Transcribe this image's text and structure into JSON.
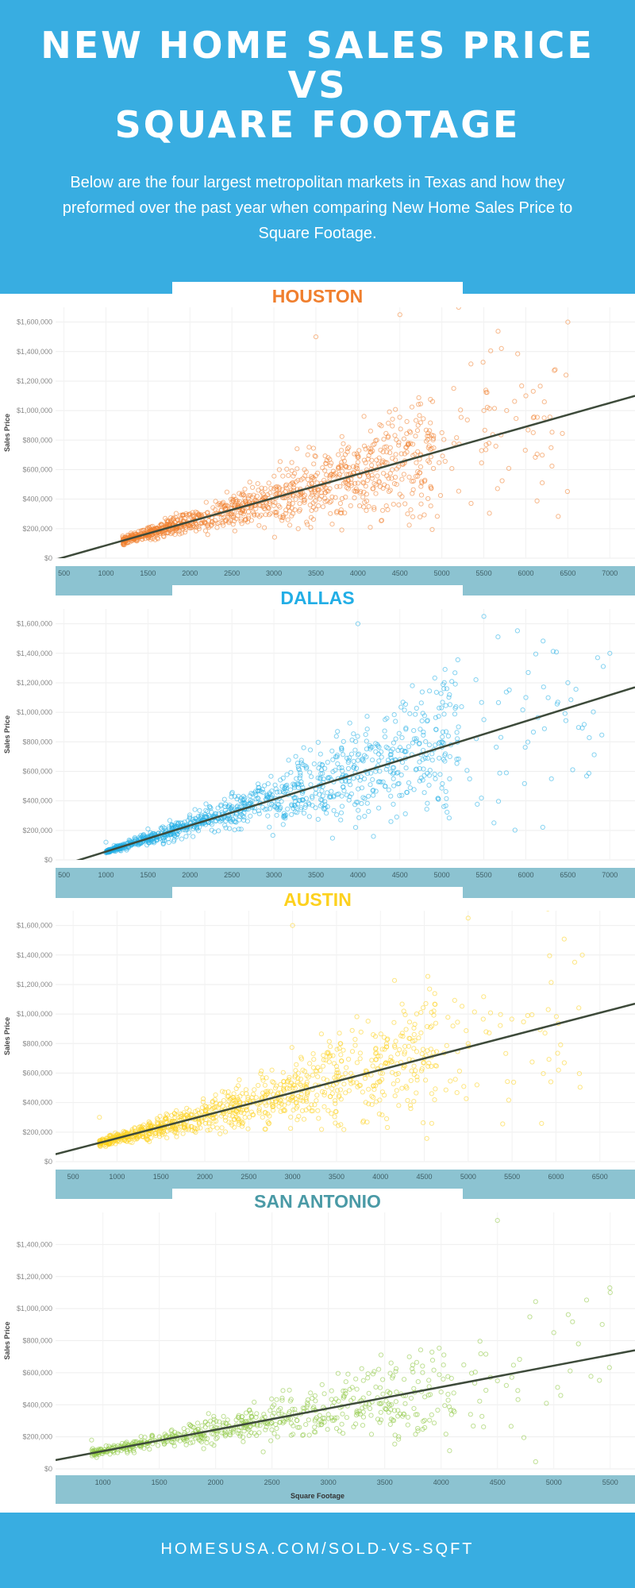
{
  "header": {
    "title_lines": [
      "NEW HOME SALES PRICE",
      "VS",
      "SQUARE FOOTAGE"
    ],
    "intro": "Below are the four largest metropolitan markets in Texas and how they preformed over the past year when comparing New Home Sales Price to Square Footage."
  },
  "footer": {
    "url": "HOMESUSA.COM/SOLD-VS-SQFT"
  },
  "colors": {
    "header_bg": "#38ade1",
    "axis_band": "#8cc3d1",
    "trend_line": "#3d4a3a",
    "houston": "#f07f2e",
    "dallas": "#22aee6",
    "austin": "#fdd11e",
    "san_antonio": "#8cc63f"
  },
  "chart_data": [
    {
      "type": "scatter",
      "title": "HOUSTON",
      "xlabel": "",
      "ylabel": "Sales Price",
      "xlim": [
        400,
        7300
      ],
      "ylim": [
        0,
        1700000
      ],
      "x_ticks": [
        500,
        1000,
        1500,
        2000,
        2500,
        3000,
        3500,
        4000,
        4500,
        5000,
        5500,
        6000,
        6500,
        7000
      ],
      "y_ticks": [
        0,
        200000,
        400000,
        600000,
        800000,
        1000000,
        1200000,
        1400000,
        1600000
      ],
      "y_tick_labels": [
        "$0",
        "$200,000",
        "$400,000",
        "$600,000",
        "$800,000",
        "$1,000,000",
        "$1,200,000",
        "$1,400,000",
        "$1,600,000"
      ],
      "trend": [
        [
          400,
          -10000
        ],
        [
          7300,
          1100000
        ]
      ],
      "grid": true,
      "color": "#f07f2e",
      "point_count": 1100,
      "points": [
        [
          1200,
          150000
        ],
        [
          1500,
          200000
        ],
        [
          1800,
          260000
        ],
        [
          2000,
          300000
        ],
        [
          2300,
          330000
        ],
        [
          2500,
          380000
        ],
        [
          2800,
          420000
        ],
        [
          3000,
          470000
        ],
        [
          3200,
          500000
        ],
        [
          3500,
          560000
        ],
        [
          3800,
          620000
        ],
        [
          4000,
          650000
        ],
        [
          4300,
          720000
        ],
        [
          4600,
          780000
        ],
        [
          5000,
          850000
        ],
        [
          5500,
          1000000
        ],
        [
          6000,
          1100000
        ],
        [
          3500,
          1500000
        ],
        [
          4500,
          1650000
        ],
        [
          5200,
          1700000
        ],
        [
          6500,
          1600000
        ]
      ]
    },
    {
      "type": "scatter",
      "title": "DALLAS",
      "xlabel": "",
      "ylabel": "Sales Price",
      "xlim": [
        400,
        7300
      ],
      "ylim": [
        0,
        1700000
      ],
      "x_ticks": [
        500,
        1000,
        1500,
        2000,
        2500,
        3000,
        3500,
        4000,
        4500,
        5000,
        5500,
        6000,
        6500,
        7000
      ],
      "y_ticks": [
        0,
        200000,
        400000,
        600000,
        800000,
        1000000,
        1200000,
        1400000,
        1600000
      ],
      "y_tick_labels": [
        "$0",
        "$200,000",
        "$400,000",
        "$600,000",
        "$800,000",
        "$1,000,000",
        "$1,200,000",
        "$1,400,000",
        "$1,600,000"
      ],
      "trend": [
        [
          400,
          -50000
        ],
        [
          7300,
          1170000
        ]
      ],
      "grid": true,
      "color": "#22aee6",
      "point_count": 1100,
      "points": [
        [
          1000,
          120000
        ],
        [
          1500,
          210000
        ],
        [
          2000,
          280000
        ],
        [
          2500,
          330000
        ],
        [
          3000,
          400000
        ],
        [
          3500,
          480000
        ],
        [
          4000,
          560000
        ],
        [
          4500,
          680000
        ],
        [
          5000,
          800000
        ],
        [
          5500,
          950000
        ],
        [
          6000,
          1100000
        ],
        [
          6500,
          1200000
        ],
        [
          4000,
          1600000
        ],
        [
          5500,
          1650000
        ],
        [
          7000,
          1400000
        ]
      ]
    },
    {
      "type": "scatter",
      "title": "AUSTIN",
      "xlabel": "",
      "ylabel": "Sales Price",
      "xlim": [
        300,
        6900
      ],
      "ylim": [
        0,
        1700000
      ],
      "x_ticks": [
        500,
        1000,
        1500,
        2000,
        2500,
        3000,
        3500,
        4000,
        4500,
        5000,
        5500,
        6000,
        6500
      ],
      "y_ticks": [
        0,
        200000,
        400000,
        600000,
        800000,
        1000000,
        1200000,
        1400000,
        1600000
      ],
      "y_tick_labels": [
        "$0",
        "$200,000",
        "$400,000",
        "$600,000",
        "$800,000",
        "$1,000,000",
        "$1,200,000",
        "$1,400,000",
        "$1,600,000"
      ],
      "trend": [
        [
          300,
          50000
        ],
        [
          6900,
          1070000
        ]
      ],
      "grid": true,
      "color": "#fdd11e",
      "point_count": 1000,
      "points": [
        [
          800,
          300000
        ],
        [
          1200,
          230000
        ],
        [
          1500,
          260000
        ],
        [
          1800,
          300000
        ],
        [
          2000,
          320000
        ],
        [
          2300,
          350000
        ],
        [
          2600,
          390000
        ],
        [
          3000,
          440000
        ],
        [
          3500,
          530000
        ],
        [
          4000,
          600000
        ],
        [
          4500,
          700000
        ],
        [
          5000,
          800000
        ],
        [
          3000,
          1600000
        ],
        [
          5000,
          1650000
        ],
        [
          6300,
          1400000
        ]
      ]
    },
    {
      "type": "scatter",
      "title": "SAN ANTONIO",
      "xlabel": "Square Footage",
      "ylabel": "Sales Price",
      "xlim": [
        580,
        5720
      ],
      "ylim": [
        0,
        1600000
      ],
      "x_ticks": [
        1000,
        1500,
        2000,
        2500,
        3000,
        3500,
        4000,
        4500,
        5000,
        5500
      ],
      "y_ticks": [
        0,
        200000,
        400000,
        600000,
        800000,
        1000000,
        1200000,
        1400000
      ],
      "y_tick_labels": [
        "$0",
        "$200,000",
        "$400,000",
        "$600,000",
        "$800,000",
        "$1,000,000",
        "$1,200,000",
        "$1,400,000"
      ],
      "trend": [
        [
          580,
          55000
        ],
        [
          5720,
          740000
        ]
      ],
      "grid": true,
      "color": "#8cc63f",
      "point_count": 650,
      "points": [
        [
          900,
          180000
        ],
        [
          1200,
          160000
        ],
        [
          1500,
          200000
        ],
        [
          1800,
          220000
        ],
        [
          2000,
          240000
        ],
        [
          2300,
          260000
        ],
        [
          2600,
          300000
        ],
        [
          3000,
          340000
        ],
        [
          3300,
          380000
        ],
        [
          3600,
          420000
        ],
        [
          4000,
          480000
        ],
        [
          4500,
          550000
        ],
        [
          5000,
          850000
        ],
        [
          4500,
          1550000
        ],
        [
          5500,
          1100000
        ]
      ]
    }
  ]
}
